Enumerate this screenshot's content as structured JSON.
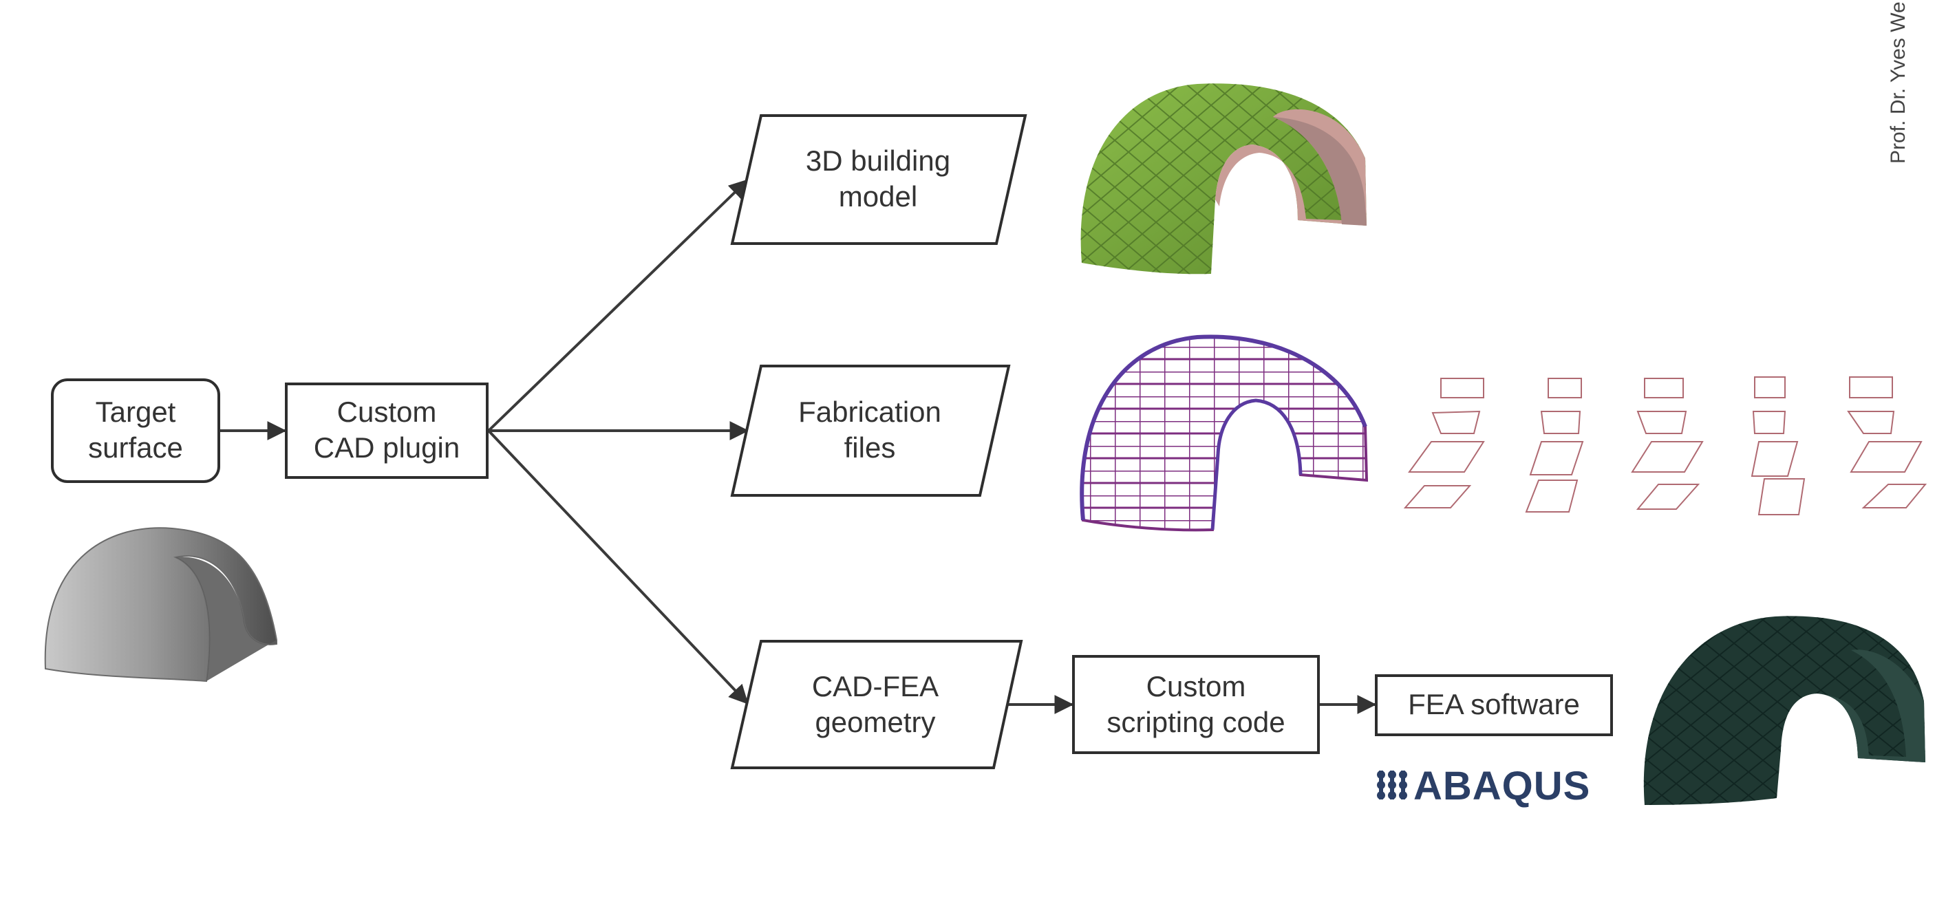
{
  "nodes": {
    "target_surface": [
      "Target",
      "surface"
    ],
    "custom_cad_plugin": [
      "Custom",
      "CAD plugin"
    ],
    "building_model": [
      "3D building",
      "model"
    ],
    "fabrication_files": [
      "Fabrication",
      "files"
    ],
    "cad_fea_geometry": [
      "CAD-FEA",
      "geometry"
    ],
    "custom_scripting_code": [
      "Custom",
      "scripting code"
    ],
    "fea_software": [
      "FEA software"
    ]
  },
  "logo": {
    "text": "ABAQUS",
    "color": "#2b3f66"
  },
  "author": "Prof. Dr. Yves We",
  "colors": {
    "green_shell": "#7aa640",
    "pink_shell": "#c58a86",
    "purple_frame": "#8a3a8a",
    "dark_shell": "#1f3832",
    "grey_surface": "#8d8d8d"
  }
}
